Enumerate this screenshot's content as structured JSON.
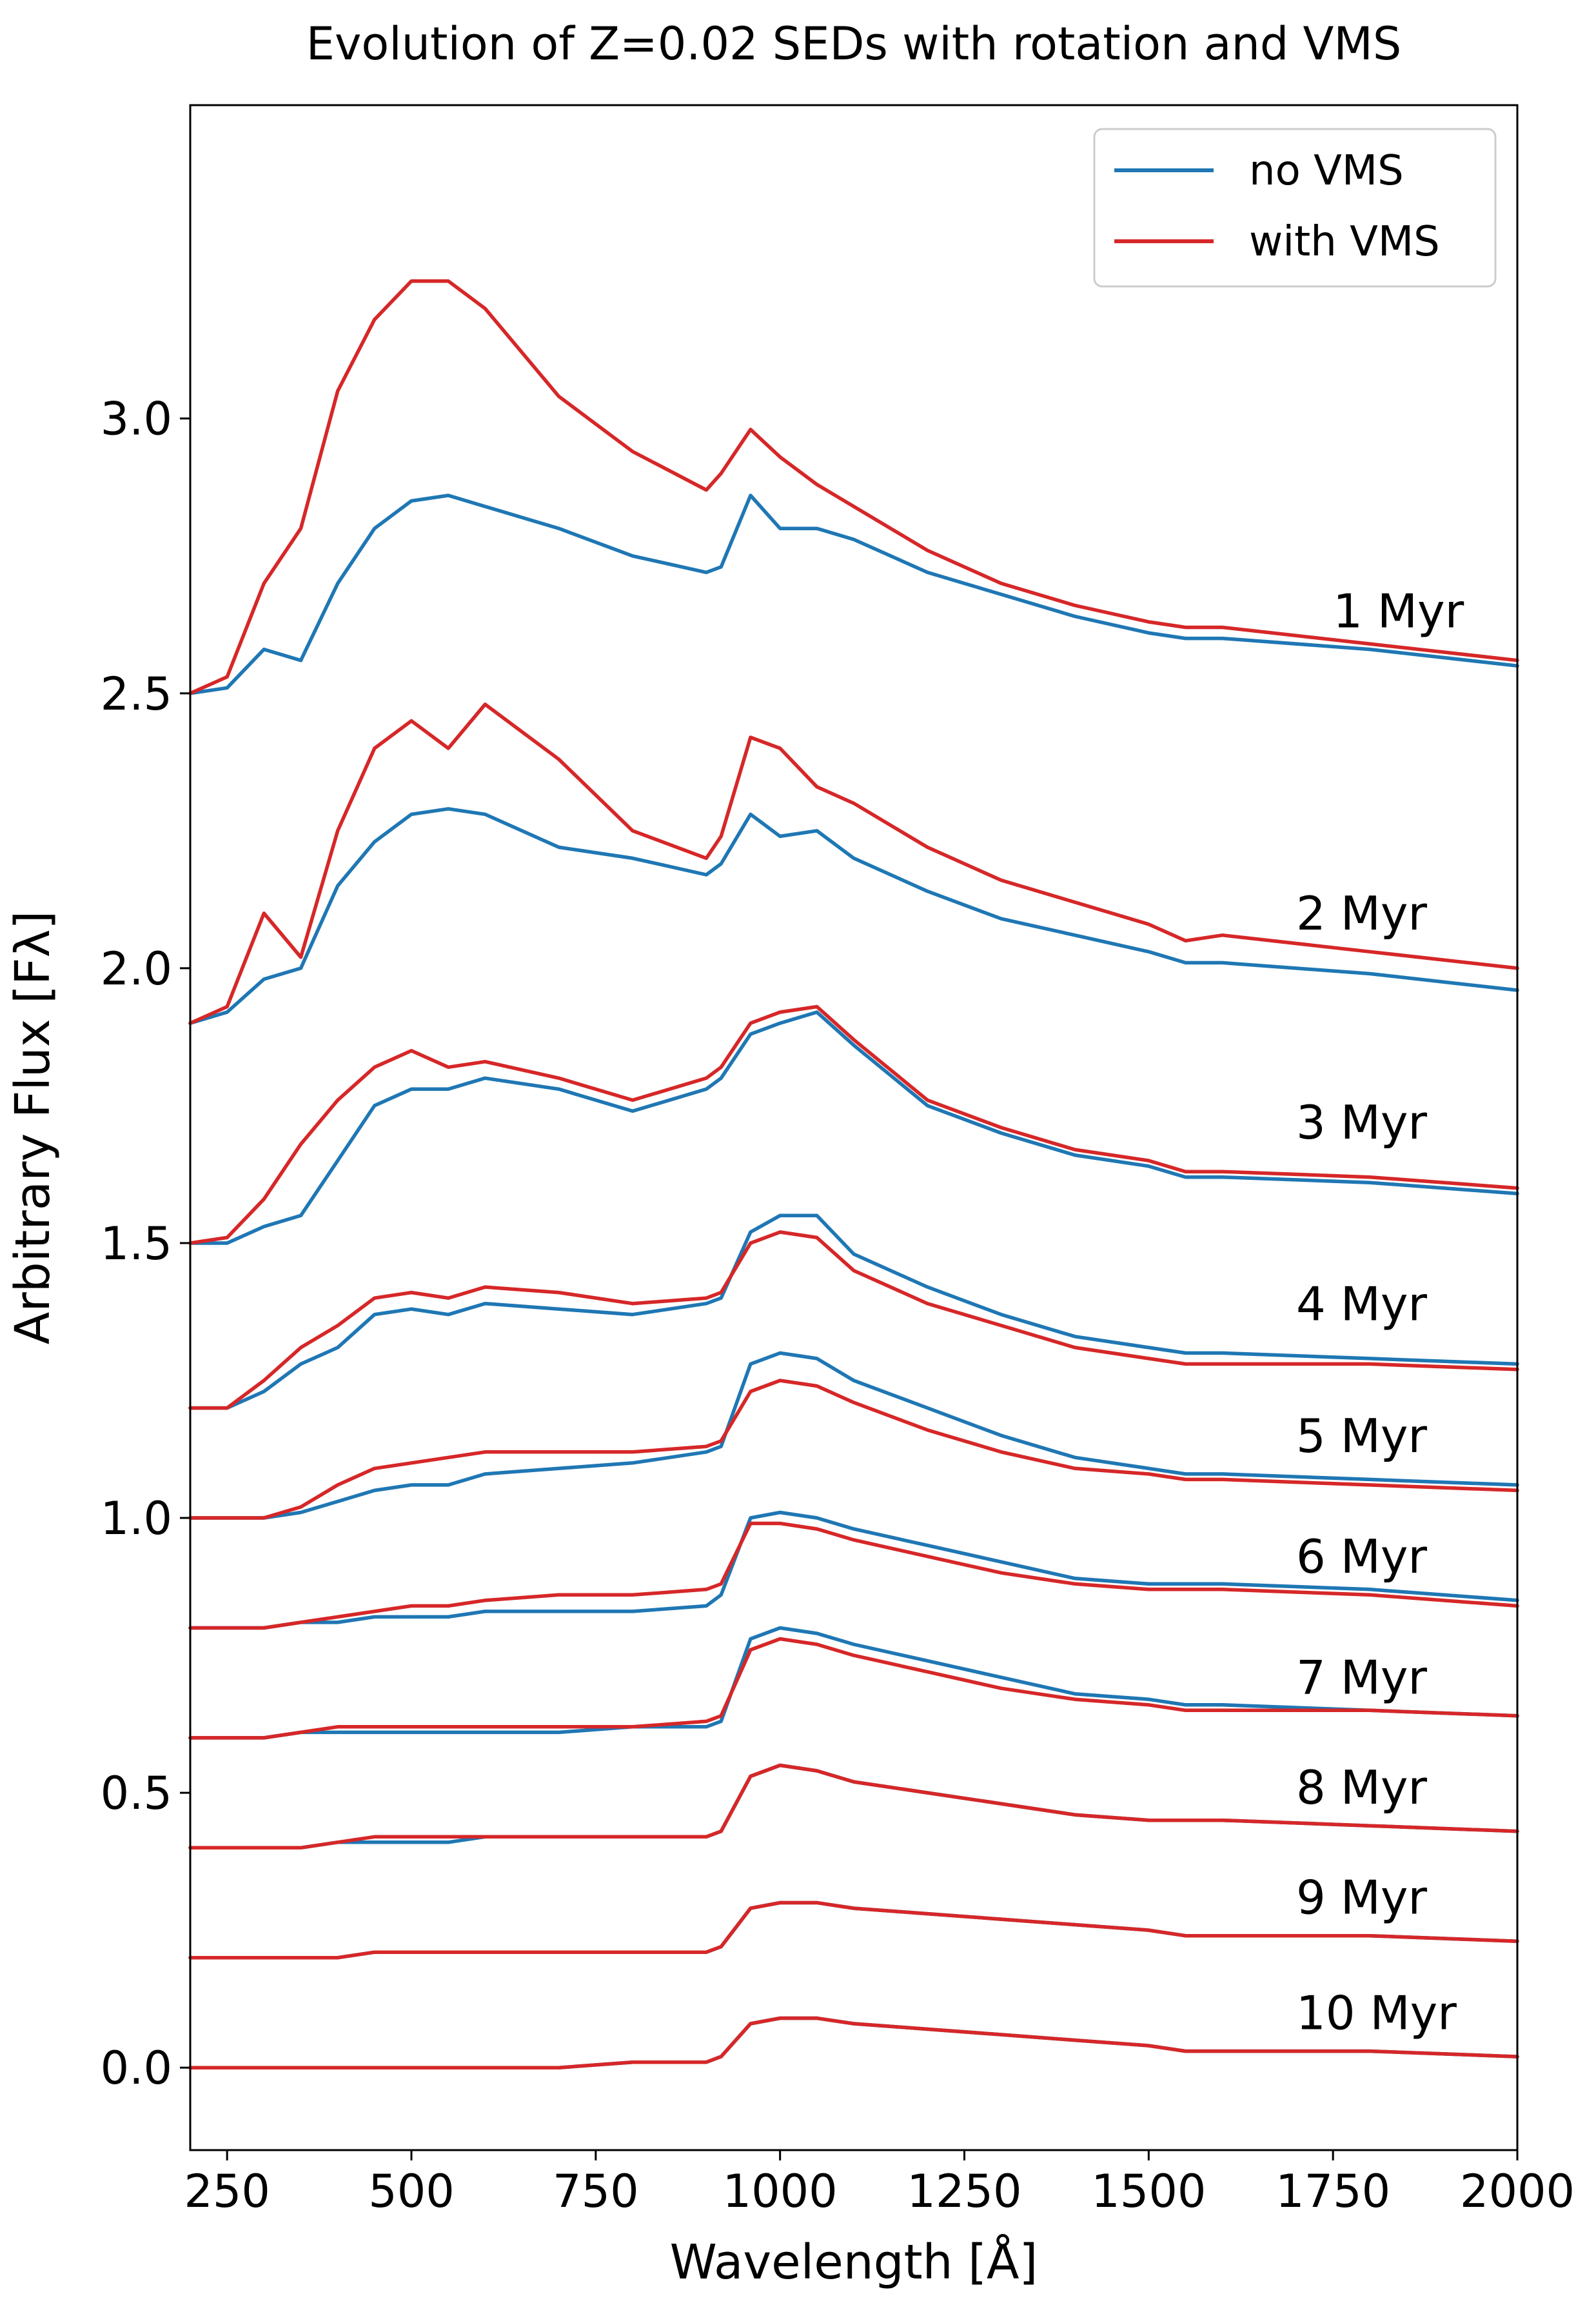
{
  "chart_data": {
    "type": "line",
    "title": "Evolution of Z=0.02 SEDs with rotation and VMS",
    "xlabel": "Wavelength [Å]",
    "ylabel": "Arbitrary Flux [Fλ]",
    "xlim": [
      200,
      2000
    ],
    "ylim": [
      -0.15,
      3.57
    ],
    "x_ticks": [
      250,
      500,
      750,
      1000,
      1250,
      1500,
      1750,
      2000
    ],
    "x_tick_labels": [
      "250",
      "500",
      "750",
      "1000",
      "1250",
      "1500",
      "1750",
      "2000"
    ],
    "y_ticks": [
      0.0,
      0.5,
      1.0,
      1.5,
      2.0,
      2.5,
      3.0
    ],
    "y_tick_labels": [
      "0.0",
      "0.5",
      "1.0",
      "1.5",
      "2.0",
      "2.5",
      "3.0"
    ],
    "grid": false,
    "legend": {
      "position": "top-right",
      "entries": [
        {
          "label": "no VMS",
          "color": "#1f77b4"
        },
        {
          "label": "with VMS",
          "color": "#d62728"
        }
      ]
    },
    "x": [
      200,
      250,
      300,
      350,
      400,
      450,
      500,
      550,
      600,
      700,
      800,
      900,
      920,
      960,
      1000,
      1050,
      1100,
      1200,
      1300,
      1400,
      1500,
      1550,
      1600,
      1800,
      2000
    ],
    "groups": [
      {
        "label": "1 Myr",
        "label_x": 1750,
        "label_y": 2.62,
        "no_vms": [
          2.5,
          2.51,
          2.58,
          2.56,
          2.7,
          2.8,
          2.85,
          2.86,
          2.84,
          2.8,
          2.75,
          2.72,
          2.73,
          2.86,
          2.8,
          2.8,
          2.78,
          2.72,
          2.68,
          2.64,
          2.61,
          2.6,
          2.6,
          2.58,
          2.55
        ],
        "with_vms": [
          2.5,
          2.53,
          2.7,
          2.8,
          3.05,
          3.18,
          3.25,
          3.25,
          3.2,
          3.04,
          2.94,
          2.87,
          2.9,
          2.98,
          2.93,
          2.88,
          2.84,
          2.76,
          2.7,
          2.66,
          2.63,
          2.62,
          2.62,
          2.59,
          2.56
        ]
      },
      {
        "label": "2 Myr",
        "label_x": 1700,
        "label_y": 2.07,
        "no_vms": [
          1.9,
          1.92,
          1.98,
          2.0,
          2.15,
          2.23,
          2.28,
          2.29,
          2.28,
          2.22,
          2.2,
          2.17,
          2.19,
          2.28,
          2.24,
          2.25,
          2.2,
          2.14,
          2.09,
          2.06,
          2.03,
          2.01,
          2.01,
          1.99,
          1.96
        ],
        "with_vms": [
          1.9,
          1.93,
          2.1,
          2.02,
          2.25,
          2.4,
          2.45,
          2.4,
          2.48,
          2.38,
          2.25,
          2.2,
          2.24,
          2.42,
          2.4,
          2.33,
          2.3,
          2.22,
          2.16,
          2.12,
          2.08,
          2.05,
          2.06,
          2.03,
          2.0
        ]
      },
      {
        "label": "3 Myr",
        "label_x": 1700,
        "label_y": 1.69,
        "no_vms": [
          1.5,
          1.5,
          1.53,
          1.55,
          1.65,
          1.75,
          1.78,
          1.78,
          1.8,
          1.78,
          1.74,
          1.78,
          1.8,
          1.88,
          1.9,
          1.92,
          1.86,
          1.75,
          1.7,
          1.66,
          1.64,
          1.62,
          1.62,
          1.61,
          1.59
        ],
        "with_vms": [
          1.5,
          1.51,
          1.58,
          1.68,
          1.76,
          1.82,
          1.85,
          1.82,
          1.83,
          1.8,
          1.76,
          1.8,
          1.82,
          1.9,
          1.92,
          1.93,
          1.87,
          1.76,
          1.71,
          1.67,
          1.65,
          1.63,
          1.63,
          1.62,
          1.6
        ]
      },
      {
        "label": "4 Myr",
        "label_x": 1700,
        "label_y": 1.36,
        "no_vms": [
          1.2,
          1.2,
          1.23,
          1.28,
          1.31,
          1.37,
          1.38,
          1.37,
          1.39,
          1.38,
          1.37,
          1.39,
          1.4,
          1.52,
          1.55,
          1.55,
          1.48,
          1.42,
          1.37,
          1.33,
          1.31,
          1.3,
          1.3,
          1.29,
          1.28
        ],
        "with_vms": [
          1.2,
          1.2,
          1.25,
          1.31,
          1.35,
          1.4,
          1.41,
          1.4,
          1.42,
          1.41,
          1.39,
          1.4,
          1.41,
          1.5,
          1.52,
          1.51,
          1.45,
          1.39,
          1.35,
          1.31,
          1.29,
          1.28,
          1.28,
          1.28,
          1.27
        ]
      },
      {
        "label": "5 Myr",
        "label_x": 1700,
        "label_y": 1.12,
        "no_vms": [
          1.0,
          1.0,
          1.0,
          1.01,
          1.03,
          1.05,
          1.06,
          1.06,
          1.08,
          1.09,
          1.1,
          1.12,
          1.13,
          1.28,
          1.3,
          1.29,
          1.25,
          1.2,
          1.15,
          1.11,
          1.09,
          1.08,
          1.08,
          1.07,
          1.06
        ],
        "with_vms": [
          1.0,
          1.0,
          1.0,
          1.02,
          1.06,
          1.09,
          1.1,
          1.11,
          1.12,
          1.12,
          1.12,
          1.13,
          1.14,
          1.23,
          1.25,
          1.24,
          1.21,
          1.16,
          1.12,
          1.09,
          1.08,
          1.07,
          1.07,
          1.06,
          1.05
        ]
      },
      {
        "label": "6 Myr",
        "label_x": 1700,
        "label_y": 0.9,
        "no_vms": [
          0.8,
          0.8,
          0.8,
          0.81,
          0.81,
          0.82,
          0.82,
          0.82,
          0.83,
          0.83,
          0.83,
          0.84,
          0.86,
          1.0,
          1.01,
          1.0,
          0.98,
          0.95,
          0.92,
          0.89,
          0.88,
          0.88,
          0.88,
          0.87,
          0.85
        ],
        "with_vms": [
          0.8,
          0.8,
          0.8,
          0.81,
          0.82,
          0.83,
          0.84,
          0.84,
          0.85,
          0.86,
          0.86,
          0.87,
          0.88,
          0.99,
          0.99,
          0.98,
          0.96,
          0.93,
          0.9,
          0.88,
          0.87,
          0.87,
          0.87,
          0.86,
          0.84
        ]
      },
      {
        "label": "7 Myr",
        "label_x": 1700,
        "label_y": 0.68,
        "no_vms": [
          0.6,
          0.6,
          0.6,
          0.61,
          0.61,
          0.61,
          0.61,
          0.61,
          0.61,
          0.61,
          0.62,
          0.62,
          0.63,
          0.78,
          0.8,
          0.79,
          0.77,
          0.74,
          0.71,
          0.68,
          0.67,
          0.66,
          0.66,
          0.65,
          0.64
        ],
        "with_vms": [
          0.6,
          0.6,
          0.6,
          0.61,
          0.62,
          0.62,
          0.62,
          0.62,
          0.62,
          0.62,
          0.62,
          0.63,
          0.64,
          0.76,
          0.78,
          0.77,
          0.75,
          0.72,
          0.69,
          0.67,
          0.66,
          0.65,
          0.65,
          0.65,
          0.64
        ]
      },
      {
        "label": "8 Myr",
        "label_x": 1700,
        "label_y": 0.48,
        "no_vms": [
          0.4,
          0.4,
          0.4,
          0.4,
          0.41,
          0.41,
          0.41,
          0.41,
          0.42,
          0.42,
          0.42,
          0.42,
          0.43,
          0.53,
          0.55,
          0.54,
          0.52,
          0.5,
          0.48,
          0.46,
          0.45,
          0.45,
          0.45,
          0.44,
          0.43
        ],
        "with_vms": [
          0.4,
          0.4,
          0.4,
          0.4,
          0.41,
          0.42,
          0.42,
          0.42,
          0.42,
          0.42,
          0.42,
          0.42,
          0.43,
          0.53,
          0.55,
          0.54,
          0.52,
          0.5,
          0.48,
          0.46,
          0.45,
          0.45,
          0.45,
          0.44,
          0.43
        ]
      },
      {
        "label": "9 Myr",
        "label_x": 1700,
        "label_y": 0.28,
        "no_vms": [
          0.2,
          0.2,
          0.2,
          0.2,
          0.2,
          0.21,
          0.21,
          0.21,
          0.21,
          0.21,
          0.21,
          0.21,
          0.22,
          0.29,
          0.3,
          0.3,
          0.29,
          0.28,
          0.27,
          0.26,
          0.25,
          0.24,
          0.24,
          0.24,
          0.23
        ],
        "with_vms": [
          0.2,
          0.2,
          0.2,
          0.2,
          0.2,
          0.21,
          0.21,
          0.21,
          0.21,
          0.21,
          0.21,
          0.21,
          0.22,
          0.29,
          0.3,
          0.3,
          0.29,
          0.28,
          0.27,
          0.26,
          0.25,
          0.24,
          0.24,
          0.24,
          0.23
        ]
      },
      {
        "label": "10 Myr",
        "label_x": 1700,
        "label_y": 0.07,
        "no_vms": [
          0.0,
          0.0,
          0.0,
          0.0,
          0.0,
          0.0,
          0.0,
          0.0,
          0.0,
          0.0,
          0.01,
          0.01,
          0.02,
          0.08,
          0.09,
          0.09,
          0.08,
          0.07,
          0.06,
          0.05,
          0.04,
          0.03,
          0.03,
          0.03,
          0.02
        ],
        "with_vms": [
          0.0,
          0.0,
          0.0,
          0.0,
          0.0,
          0.0,
          0.0,
          0.0,
          0.0,
          0.0,
          0.01,
          0.01,
          0.02,
          0.08,
          0.09,
          0.09,
          0.08,
          0.07,
          0.06,
          0.05,
          0.04,
          0.03,
          0.03,
          0.03,
          0.02
        ]
      }
    ]
  }
}
